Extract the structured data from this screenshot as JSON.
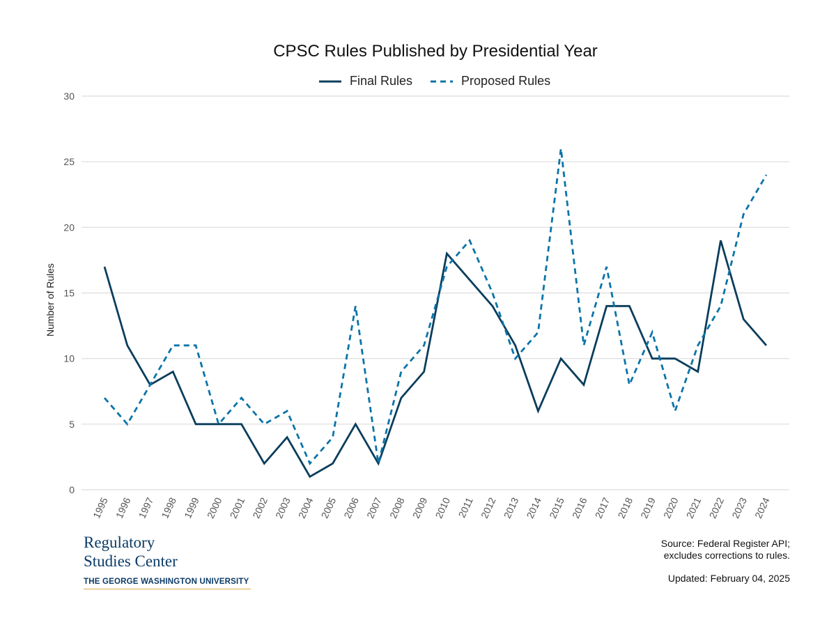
{
  "chart_data": {
    "type": "line",
    "title": "CPSC Rules Published by Presidential Year",
    "xlabel": "",
    "ylabel": "Number of Rules",
    "ylim": [
      0,
      30
    ],
    "yticks": [
      "0",
      "5",
      "10",
      "15",
      "20",
      "25",
      "30"
    ],
    "grid": true,
    "legend_position": "top",
    "categories": [
      "1995",
      "1996",
      "1997",
      "1998",
      "1999",
      "2000",
      "2001",
      "2002",
      "2003",
      "2004",
      "2005",
      "2006",
      "2007",
      "2008",
      "2009",
      "2010",
      "2011",
      "2012",
      "2013",
      "2014",
      "2015",
      "2016",
      "2017",
      "2018",
      "2019",
      "2020",
      "2021",
      "2022",
      "2023",
      "2024"
    ],
    "series": [
      {
        "name": "Final Rules",
        "color": "#0a3d5c",
        "style": "solid",
        "values": [
          17,
          11,
          8,
          9,
          5,
          5,
          5,
          2,
          4,
          1,
          2,
          5,
          2,
          7,
          9,
          18,
          16,
          14,
          11,
          6,
          10,
          8,
          14,
          14,
          10,
          10,
          9,
          19,
          13,
          11
        ]
      },
      {
        "name": "Proposed Rules",
        "color": "#0a74a8",
        "style": "dashed",
        "values": [
          7,
          5,
          8,
          11,
          11,
          5,
          7,
          5,
          6,
          2,
          4,
          14,
          2,
          9,
          11,
          17,
          19,
          15,
          10,
          12,
          26,
          11,
          17,
          8,
          12,
          6,
          11,
          14,
          21,
          24
        ]
      }
    ]
  },
  "logo": {
    "line1": "Regulatory",
    "line2": "Studies Center",
    "line3": "THE GEORGE WASHINGTON UNIVERSITY"
  },
  "source": {
    "line1": "Source: Federal Register API;",
    "line2": "excludes corrections to rules."
  },
  "updated": "Updated: February 04, 2025"
}
